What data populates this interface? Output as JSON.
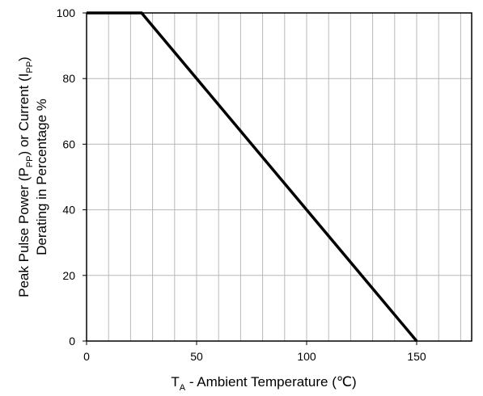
{
  "chart_data": {
    "type": "line",
    "series": [
      {
        "x": [
          0,
          25,
          150
        ],
        "y": [
          100,
          100,
          0
        ]
      }
    ],
    "xlim": [
      0,
      175
    ],
    "ylim": [
      0,
      100
    ],
    "x_ticks": [
      0,
      50,
      100,
      150
    ],
    "x_tick_labels": [
      "0",
      "50",
      "100",
      "150"
    ],
    "y_ticks": [
      0,
      20,
      40,
      60,
      80,
      100
    ],
    "y_tick_labels": [
      "0",
      "20",
      "40",
      "60",
      "80",
      "100"
    ],
    "x_minor_step": 10,
    "grid": true,
    "xlabel": {
      "main": "T",
      "sub": "A",
      "rest": " - Ambient Temperature (℃)"
    },
    "ylabel": {
      "line1_main": "Peak Pulse Power (P",
      "line1_sub1": "PP",
      "line1_mid": ") or Current (I",
      "line1_sub2": "PP",
      "line1_end": ")",
      "line2": "Derating in Percentage %"
    },
    "colors": {
      "line": "#000000",
      "grid": "#b8b8b8",
      "frame": "#000000"
    }
  }
}
